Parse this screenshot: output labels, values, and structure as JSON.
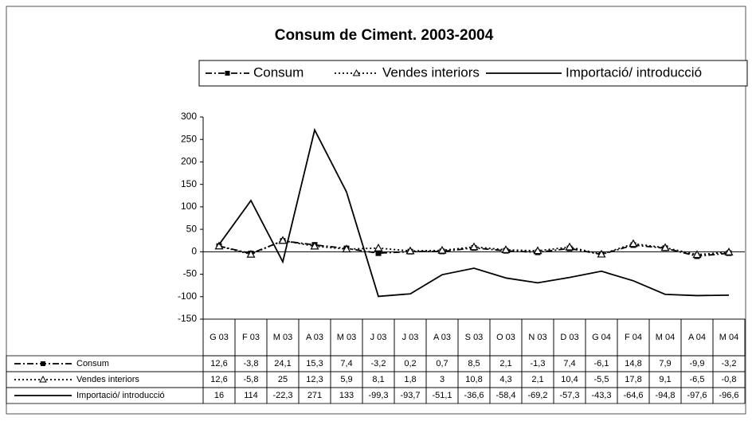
{
  "chart_data": {
    "type": "line",
    "title": "Consum de Ciment. 2003-2004",
    "categories": [
      "G 03",
      "F 03",
      "M 03",
      "A 03",
      "M 03",
      "J 03",
      "J 03",
      "A 03",
      "S 03",
      "O 03",
      "N 03",
      "D 03",
      "G 04",
      "F 04",
      "M 04",
      "A 04",
      "M 04"
    ],
    "series": [
      {
        "name": "Consum",
        "color": "#000000",
        "dash": "dashdot",
        "marker": "square",
        "values": [
          12.6,
          -3.8,
          24.1,
          15.3,
          7.4,
          -3.2,
          0.2,
          0.7,
          8.5,
          2.1,
          -1.3,
          7.4,
          -6.1,
          14.8,
          7.9,
          -9.9,
          -3.2
        ],
        "value_labels": [
          "12,6",
          "-3,8",
          "24,1",
          "15,3",
          "7,4",
          "-3,2",
          "0,2",
          "0,7",
          "8,5",
          "2,1",
          "-1,3",
          "7,4",
          "-6,1",
          "14,8",
          "7,9",
          "-9,9",
          "-3,2"
        ]
      },
      {
        "name": "Vendes interiors",
        "color": "#000000",
        "dash": "dotted",
        "marker": "triangle",
        "values": [
          12.6,
          -5.8,
          25,
          12.3,
          5.9,
          8.1,
          1.8,
          3,
          10.8,
          4.3,
          2.1,
          10.4,
          -5.5,
          17.8,
          9.1,
          -6.5,
          -0.8
        ],
        "value_labels": [
          "12,6",
          "-5,8",
          "25",
          "12,3",
          "5,9",
          "8,1",
          "1,8",
          "3",
          "10,8",
          "4,3",
          "2,1",
          "10,4",
          "-5,5",
          "17,8",
          "9,1",
          "-6,5",
          "-0,8"
        ]
      },
      {
        "name": "Importació/ introducció",
        "color": "#000000",
        "dash": "solid",
        "values": [
          16,
          114,
          -22.3,
          271,
          133,
          -99.3,
          -93.7,
          -51.1,
          -36.6,
          -58.4,
          -69.2,
          -57.3,
          -43.3,
          -64.6,
          -94.8,
          -97.6,
          -96.6
        ],
        "value_labels": [
          "16",
          "114",
          "-22,3",
          "271",
          "133",
          "-99,3",
          "-93,7",
          "-51,1",
          "-36,6",
          "-58,4",
          "-69,2",
          "-57,3",
          "-43,3",
          "-64,6",
          "-94,8",
          "-97,6",
          "-96,6"
        ]
      }
    ],
    "ylim": [
      -150,
      300
    ],
    "yticks": [
      -150,
      -100,
      -50,
      0,
      50,
      100,
      150,
      200,
      250,
      300
    ]
  }
}
